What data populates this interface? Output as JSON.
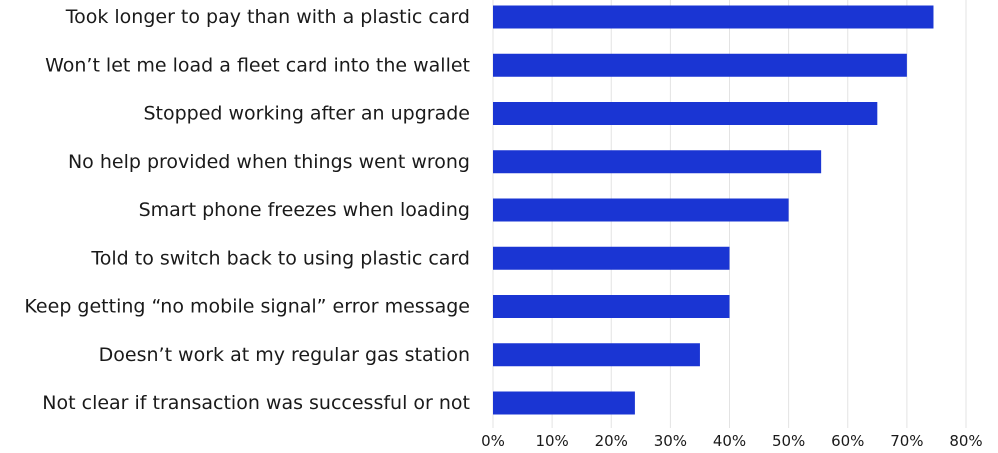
{
  "chart_data": {
    "type": "bar",
    "orientation": "horizontal",
    "categories": [
      "Took longer to pay than with a plastic card",
      "Won’t let me load a fleet card into the wallet",
      "Stopped working after an upgrade",
      "No help provided when things went wrong",
      "Smart phone freezes when loading",
      "Told to switch back to using plastic card",
      "Keep getting “no mobile signal” error message",
      "Doesn’t work at my regular gas station",
      "Not clear if transaction was successful or not"
    ],
    "values": [
      74.5,
      70,
      65,
      55.5,
      50,
      40,
      40,
      35,
      24
    ],
    "xlim": [
      0,
      80
    ],
    "x_ticks": [
      "0%",
      "10%",
      "20%",
      "30%",
      "40%",
      "50%",
      "60%",
      "70%",
      "80%"
    ],
    "title": "",
    "xlabel": "",
    "ylabel": "",
    "grid": "vertical",
    "legend": "none",
    "colors": {
      "bar": "#1a35d3",
      "grid": "#e3e3e3",
      "text": "#1a1a1a"
    }
  }
}
